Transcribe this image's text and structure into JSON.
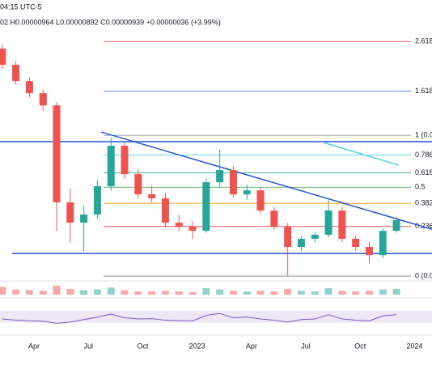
{
  "chart_data": {
    "type": "candlestick",
    "title": "04:15 UTC-5",
    "subtitle": "02 H0.00000964 L0.00000892 C0.00000939 +0.00000036 (+3.99%)",
    "log_scale": true,
    "grid": false,
    "xlim": [
      2.125,
      25.96
    ],
    "xticks": [
      {
        "value": 4,
        "label": "Apr"
      },
      {
        "value": 7,
        "label": "Jul"
      },
      {
        "value": 10,
        "label": "Oct"
      },
      {
        "value": 13,
        "label": "2023"
      },
      {
        "value": 16,
        "label": "Apr"
      },
      {
        "value": 19,
        "label": "Jul"
      },
      {
        "value": 22,
        "label": "Oct"
      },
      {
        "value": 25,
        "label": "2024"
      }
    ],
    "ylim": [
      5.92e-06,
      4.33e-05
    ],
    "up_color": "#26a69a",
    "down_color": "#ef5350",
    "candles": {
      "x": [
        2.25,
        3,
        3.75,
        4.5,
        5.25,
        6,
        6.75,
        7.5,
        8.25,
        9,
        9.75,
        10.5,
        11.25,
        12,
        12.75,
        13.5,
        14.25,
        15,
        15.75,
        16.5,
        17.25,
        18,
        18.75,
        19.5,
        20.25,
        21,
        21.75,
        22.5,
        23.25,
        24
      ],
      "open": [
        3.58e-05,
        3.155e-05,
        2.78e-05,
        2.53e-05,
        2.3e-05,
        1.079e-05,
        9.21e-06,
        9.81e-06,
        1.224e-05,
        1.678e-05,
        1.345e-05,
        1.149e-05,
        1.113e-05,
        9.21e-06,
        8.92e-06,
        8.64e-06,
        1.263e-05,
        1.388e-05,
        1.149e-05,
        1.185e-05,
        1.012e-05,
        8.92e-06,
        7.62e-06,
        8.12e-06,
        8.38e-06,
        1.012e-05,
        8.12e-06,
        7.62e-06,
        7.15e-06,
        8.64e-06
      ],
      "high": [
        3.695e-05,
        3.25e-05,
        2.86e-05,
        2.6e-05,
        2.36e-05,
        1.2e-05,
        1.05e-05,
        1.28e-05,
        1.788e-05,
        1.72e-05,
        1.4e-05,
        1.23e-05,
        1.16e-05,
        9.8e-06,
        9.3e-06,
        1.3e-05,
        1.626e-05,
        1.43e-05,
        1.24e-05,
        1.21e-05,
        1.04e-05,
        9.2e-06,
        8.3e-06,
        8.6e-06,
        1.12e-05,
        1.04e-05,
        8.3e-06,
        7.9e-06,
        8.8e-06,
        9.64e-06
      ],
      "low": [
        3.06e-05,
        2.7e-05,
        2.45e-05,
        2.2e-05,
        8.64e-06,
        7.87e-06,
        7.38e-06,
        9.5e-06,
        1.18e-05,
        1.3e-05,
        1.11e-05,
        1.08e-05,
        8.9e-06,
        8.6e-06,
        8.12e-06,
        8.5e-06,
        1.22e-05,
        1.12e-05,
        1.1e-05,
        9.9e-06,
        8.7e-06,
        6.11e-06,
        7.4e-06,
        7.9e-06,
        8.2e-06,
        7.9e-06,
        7.4e-06,
        6.72e-06,
        7e-06,
        8.5e-06
      ],
      "close": [
        3.155e-05,
        2.78e-05,
        2.53e-05,
        2.3e-05,
        1.079e-05,
        9.21e-06,
        9.81e-06,
        1.224e-05,
        1.678e-05,
        1.345e-05,
        1.149e-05,
        1.113e-05,
        9.21e-06,
        8.92e-06,
        8.64e-06,
        1.263e-05,
        1.388e-05,
        1.149e-05,
        1.185e-05,
        1.012e-05,
        8.92e-06,
        7.62e-06,
        8.12e-06,
        8.38e-06,
        1.012e-05,
        8.12e-06,
        7.62e-06,
        7.15e-06,
        8.64e-06,
        9.39e-06
      ]
    },
    "volume": {
      "values": [
        60,
        40,
        35,
        30,
        70,
        45,
        35,
        40,
        55,
        35,
        25,
        25,
        30,
        25,
        20,
        50,
        40,
        30,
        25,
        30,
        25,
        45,
        30,
        25,
        50,
        30,
        25,
        30,
        40,
        45
      ],
      "max": 100
    },
    "rsi": {
      "values": [
        42,
        38,
        36,
        35,
        28,
        32,
        40,
        48,
        58,
        46,
        42,
        43,
        38,
        37,
        36,
        54,
        60,
        46,
        48,
        42,
        38,
        32,
        40,
        42,
        56,
        42,
        38,
        36,
        52,
        56
      ],
      "ylim": [
        0,
        100
      ],
      "band": [
        30,
        70
      ],
      "color": "#7e57c2"
    },
    "fib": {
      "base": [
        6.07e-06,
        1.821e-05
      ],
      "levels": [
        {
          "value": 2.618,
          "label": "2.618",
          "color": "#f23645"
        },
        {
          "value": 1.618,
          "label": "1.618",
          "color": "#2962ff"
        },
        {
          "value": 1,
          "label": "1 (0.0",
          "color": "#787b86"
        },
        {
          "value": 0.786,
          "label": "0.786",
          "color": "#26c6da"
        },
        {
          "value": 0.618,
          "label": "0.618",
          "color": "#089981"
        },
        {
          "value": 0.5,
          "label": "0.5",
          "color": "#4caf50"
        },
        {
          "value": 0.382,
          "label": "0.382",
          "color": "#ff9800"
        },
        {
          "value": 0.236,
          "label": "0.236",
          "color": "#f23645"
        },
        {
          "value": 0,
          "label": "0 (0.0",
          "color": "#787b86"
        }
      ]
    },
    "trendlines": [
      {
        "x": [
          7.71,
          25.96
        ],
        "y": [
          1.868e-05,
          8.75e-06
        ],
        "color": "#2453d6"
      },
      {
        "x": [
          2.125,
          25.96
        ],
        "y": [
          1.732e-05,
          1.732e-05
        ],
        "color": "#2453d6"
      },
      {
        "x": [
          2.79,
          25.96
        ],
        "y": [
          7.24e-06,
          7.24e-06
        ],
        "color": "#2453d6"
      },
      {
        "x": [
          19.98,
          24.13
        ],
        "y": [
          1.72e-05,
          1.442e-05
        ],
        "color": "#4dd0e1"
      }
    ]
  }
}
